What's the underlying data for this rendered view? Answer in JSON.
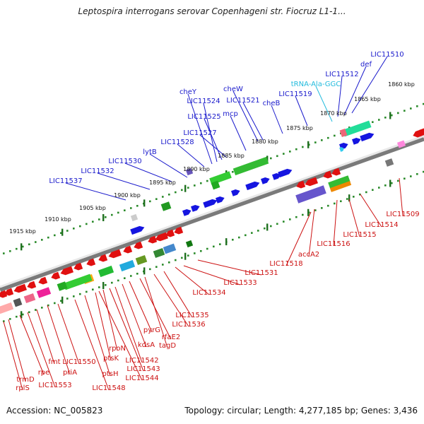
{
  "title": "Leptospira interrogans serovar Copenhageni str. Fiocruz L1-1...",
  "footer": {
    "accession": "Accession: NC_005823",
    "summary": "Topology: circular; Length: 4,277,185 bp; Genes: 3,436"
  },
  "scale_labels": [
    "1860 kbp",
    "1865 kbp",
    "1870 kbp",
    "1875 kbp",
    "1880 kbp",
    "1885 kbp",
    "1890 kbp",
    "1895 kbp",
    "1900 kbp",
    "1905 kbp",
    "1910 kbp",
    "1915 kbp"
  ],
  "top_labels": [
    "LIC11510",
    "def",
    "LIC11512",
    "tRNA-Ala-GGC",
    "LIC11519",
    "cheB",
    "cheW",
    "LIC11521",
    "mcp",
    "cheY",
    "LIC11524",
    "LIC11525",
    "LIC11527",
    "LIC11528",
    "lytB",
    "LIC11530",
    "LIC11532",
    "LIC11537"
  ],
  "bottom_labels": [
    "LIC11509",
    "LIC11514",
    "LIC11515",
    "LIC11516",
    "accA2",
    "LIC11518",
    "LIC11531",
    "LIC11533",
    "LIC11534",
    "LIC11535",
    "LIC11536",
    "tagD",
    "rfaE2",
    "pyrG",
    "kdsA",
    "LIC11542",
    "LIC11543",
    "LIC11544",
    "rpoN",
    "ptsK",
    "ptsH",
    "LIC11548",
    "LIC11550",
    "priA",
    "fmt",
    "LIC11553",
    "rpe",
    "trmD",
    "rplS"
  ],
  "colors": {
    "forward_gene": "#1515e0",
    "reverse_gene": "#e01010",
    "trna": "#33ccee",
    "scale_dots": "#2a8a2a",
    "backbone": "#9a9a9a",
    "label_red": "#cc1111",
    "label_blue": "#1a1acc",
    "label_cyan": "#22bbdd"
  }
}
